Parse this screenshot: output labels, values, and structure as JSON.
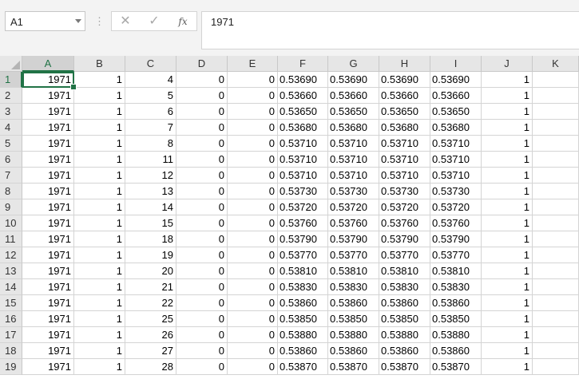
{
  "name_box": {
    "value": "A1"
  },
  "formula_bar": {
    "cancel_icon": "close-icon",
    "enter_icon": "checkmark-icon",
    "fx_label": "fx",
    "value": "1971"
  },
  "accent_color": "#217346",
  "selected_cell": "A1",
  "columns": [
    "A",
    "B",
    "C",
    "D",
    "E",
    "F",
    "G",
    "H",
    "I",
    "J",
    "K"
  ],
  "rows": [
    {
      "n": "1",
      "cells": [
        "1971",
        "1",
        "4",
        "0",
        "0",
        "0.53690",
        "0.53690",
        "0.53690",
        "0.53690",
        "1",
        ""
      ]
    },
    {
      "n": "2",
      "cells": [
        "1971",
        "1",
        "5",
        "0",
        "0",
        "0.53660",
        "0.53660",
        "0.53660",
        "0.53660",
        "1",
        ""
      ]
    },
    {
      "n": "3",
      "cells": [
        "1971",
        "1",
        "6",
        "0",
        "0",
        "0.53650",
        "0.53650",
        "0.53650",
        "0.53650",
        "1",
        ""
      ]
    },
    {
      "n": "4",
      "cells": [
        "1971",
        "1",
        "7",
        "0",
        "0",
        "0.53680",
        "0.53680",
        "0.53680",
        "0.53680",
        "1",
        ""
      ]
    },
    {
      "n": "5",
      "cells": [
        "1971",
        "1",
        "8",
        "0",
        "0",
        "0.53710",
        "0.53710",
        "0.53710",
        "0.53710",
        "1",
        ""
      ]
    },
    {
      "n": "6",
      "cells": [
        "1971",
        "1",
        "11",
        "0",
        "0",
        "0.53710",
        "0.53710",
        "0.53710",
        "0.53710",
        "1",
        ""
      ]
    },
    {
      "n": "7",
      "cells": [
        "1971",
        "1",
        "12",
        "0",
        "0",
        "0.53710",
        "0.53710",
        "0.53710",
        "0.53710",
        "1",
        ""
      ]
    },
    {
      "n": "8",
      "cells": [
        "1971",
        "1",
        "13",
        "0",
        "0",
        "0.53730",
        "0.53730",
        "0.53730",
        "0.53730",
        "1",
        ""
      ]
    },
    {
      "n": "9",
      "cells": [
        "1971",
        "1",
        "14",
        "0",
        "0",
        "0.53720",
        "0.53720",
        "0.53720",
        "0.53720",
        "1",
        ""
      ]
    },
    {
      "n": "10",
      "cells": [
        "1971",
        "1",
        "15",
        "0",
        "0",
        "0.53760",
        "0.53760",
        "0.53760",
        "0.53760",
        "1",
        ""
      ]
    },
    {
      "n": "11",
      "cells": [
        "1971",
        "1",
        "18",
        "0",
        "0",
        "0.53790",
        "0.53790",
        "0.53790",
        "0.53790",
        "1",
        ""
      ]
    },
    {
      "n": "12",
      "cells": [
        "1971",
        "1",
        "19",
        "0",
        "0",
        "0.53770",
        "0.53770",
        "0.53770",
        "0.53770",
        "1",
        ""
      ]
    },
    {
      "n": "13",
      "cells": [
        "1971",
        "1",
        "20",
        "0",
        "0",
        "0.53810",
        "0.53810",
        "0.53810",
        "0.53810",
        "1",
        ""
      ]
    },
    {
      "n": "14",
      "cells": [
        "1971",
        "1",
        "21",
        "0",
        "0",
        "0.53830",
        "0.53830",
        "0.53830",
        "0.53830",
        "1",
        ""
      ]
    },
    {
      "n": "15",
      "cells": [
        "1971",
        "1",
        "22",
        "0",
        "0",
        "0.53860",
        "0.53860",
        "0.53860",
        "0.53860",
        "1",
        ""
      ]
    },
    {
      "n": "16",
      "cells": [
        "1971",
        "1",
        "25",
        "0",
        "0",
        "0.53850",
        "0.53850",
        "0.53850",
        "0.53850",
        "1",
        ""
      ]
    },
    {
      "n": "17",
      "cells": [
        "1971",
        "1",
        "26",
        "0",
        "0",
        "0.53880",
        "0.53880",
        "0.53880",
        "0.53880",
        "1",
        ""
      ]
    },
    {
      "n": "18",
      "cells": [
        "1971",
        "1",
        "27",
        "0",
        "0",
        "0.53860",
        "0.53860",
        "0.53860",
        "0.53860",
        "1",
        ""
      ]
    },
    {
      "n": "19",
      "cells": [
        "1971",
        "1",
        "28",
        "0",
        "0",
        "0.53870",
        "0.53870",
        "0.53870",
        "0.53870",
        "1",
        ""
      ]
    }
  ]
}
